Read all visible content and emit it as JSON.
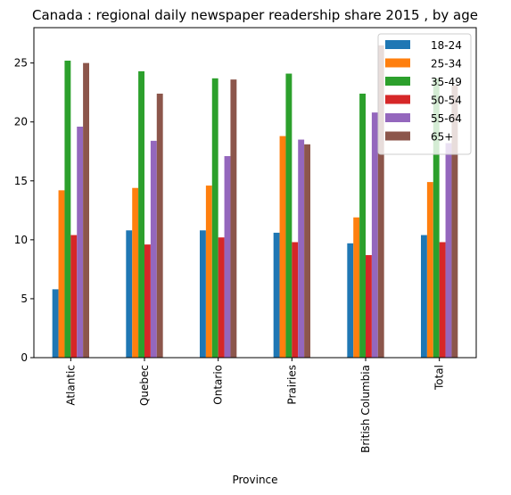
{
  "chart_data": {
    "type": "bar",
    "title": "Canada : regional daily newspaper readership share 2015 , by age",
    "xlabel": "Province",
    "ylabel": "",
    "ylim": [
      0,
      28
    ],
    "yticks": [
      0,
      5,
      10,
      15,
      20,
      25
    ],
    "categories": [
      "Atlantic",
      "Quebec",
      "Ontario",
      "Prairies",
      "British Columbia",
      "Total"
    ],
    "series": [
      {
        "name": "18-24",
        "color": "#1f77b4",
        "values": [
          5.8,
          10.8,
          10.8,
          10.6,
          9.7,
          10.4
        ]
      },
      {
        "name": "25-34",
        "color": "#ff7f0e",
        "values": [
          14.2,
          14.4,
          14.6,
          18.8,
          11.9,
          14.9
        ]
      },
      {
        "name": "35-49",
        "color": "#2ca02c",
        "values": [
          25.2,
          24.3,
          23.7,
          24.1,
          22.4,
          23.7
        ]
      },
      {
        "name": "50-54",
        "color": "#d62728",
        "values": [
          10.4,
          9.6,
          10.2,
          9.8,
          8.7,
          9.8
        ]
      },
      {
        "name": "55-64",
        "color": "#9467bd",
        "values": [
          19.6,
          18.4,
          17.1,
          18.5,
          20.8,
          18.2
        ]
      },
      {
        "name": "65+",
        "color": "#8c564b",
        "values": [
          25.0,
          22.4,
          23.6,
          18.1,
          26.5,
          23.1
        ]
      }
    ],
    "legend": "top-right"
  }
}
